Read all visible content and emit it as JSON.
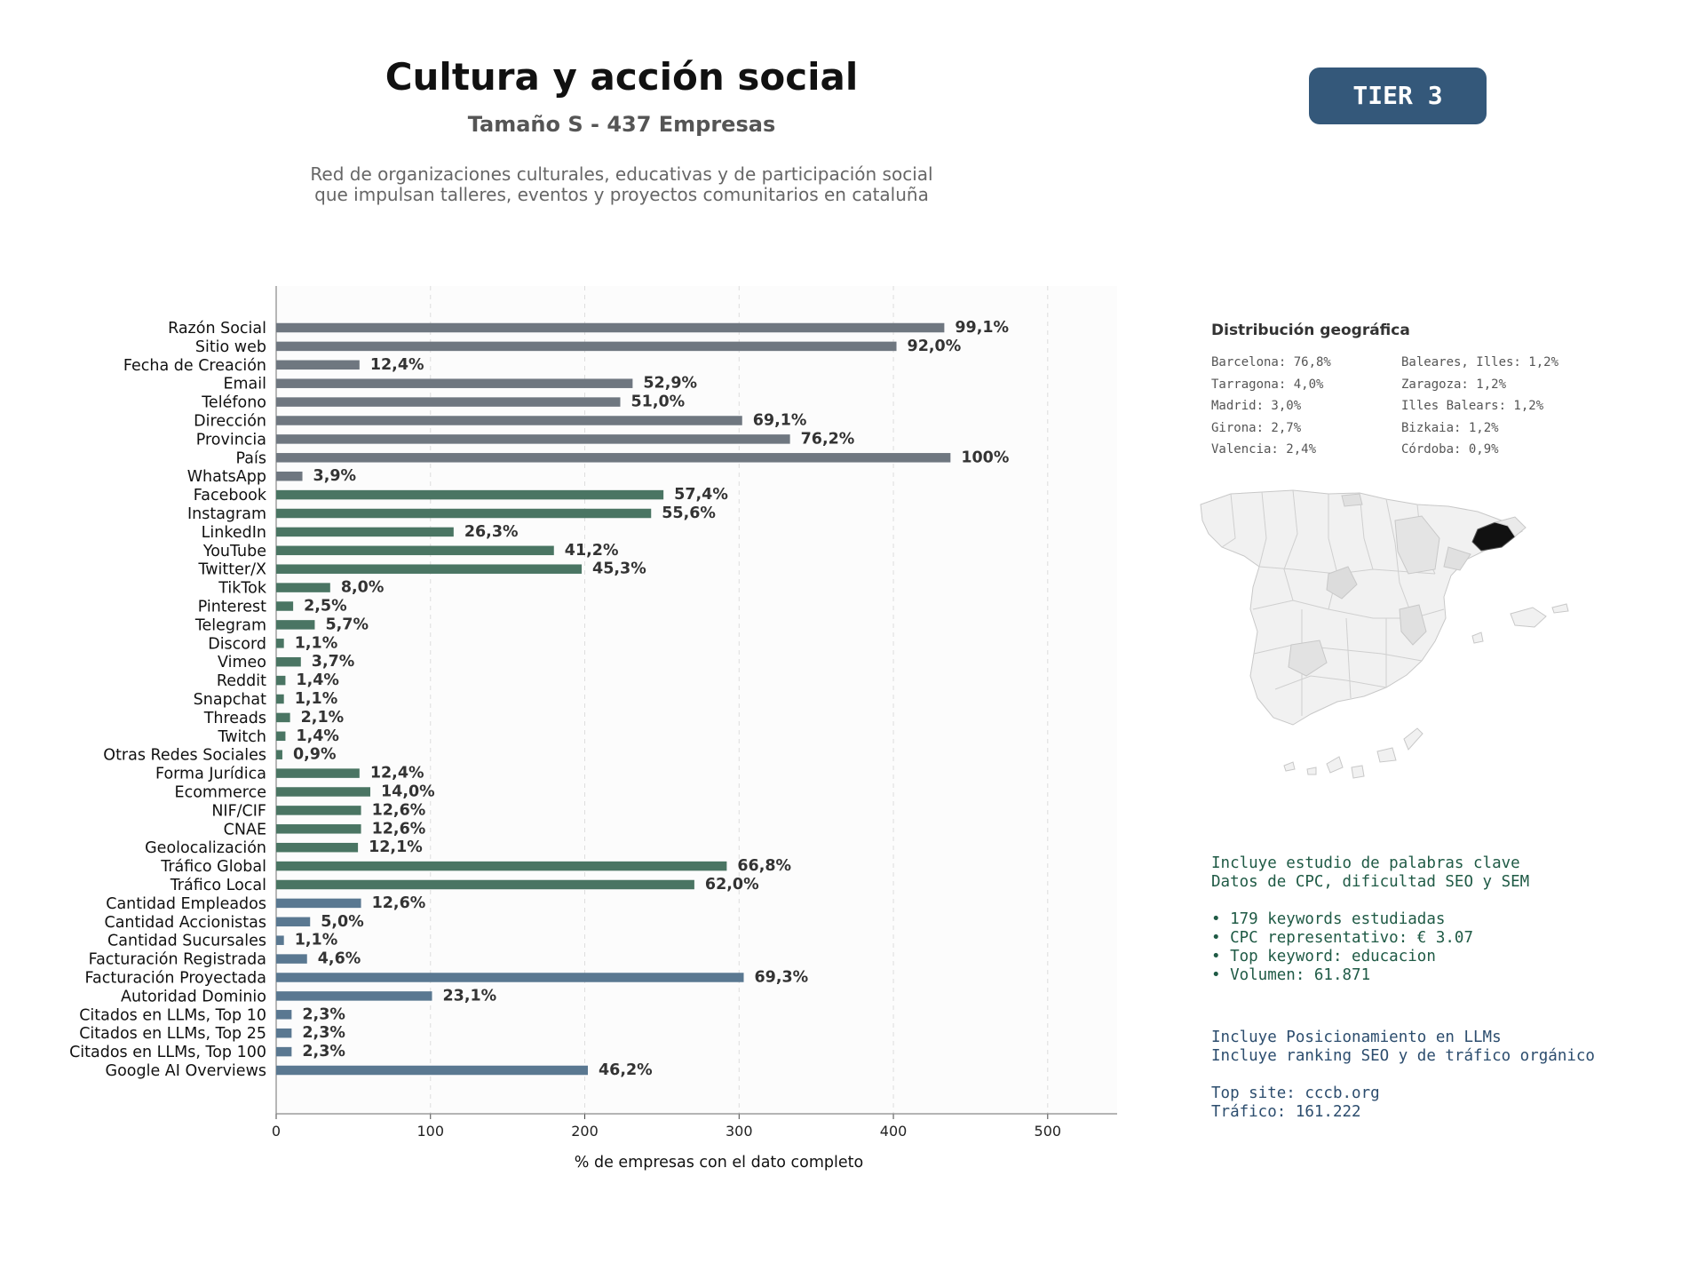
{
  "header": {
    "title": "Cultura y acción social",
    "subtitle": "Tamaño S - 437 Empresas",
    "description_lines": [
      "Red de organizaciones culturales, educativas y de participación social",
      "que impulsan talleres, eventos y proyectos comunitarios en cataluña"
    ],
    "tier_label": "TIER 3"
  },
  "chart_data": {
    "type": "bar",
    "orientation": "horizontal",
    "xlabel": "% de empresas con el dato completo",
    "ylabel": "",
    "xlim": [
      0,
      545
    ],
    "xticks": [
      0,
      100,
      200,
      300,
      400,
      500
    ],
    "grid": "vertical dashed",
    "categories": [
      "Razón Social",
      "Sitio web",
      "Fecha de Creación",
      "Email",
      "Teléfono",
      "Dirección",
      "Provincia",
      "País",
      "WhatsApp",
      "Facebook",
      "Instagram",
      "LinkedIn",
      "YouTube",
      "Twitter/X",
      "TikTok",
      "Pinterest",
      "Telegram",
      "Discord",
      "Vimeo",
      "Reddit",
      "Snapchat",
      "Threads",
      "Twitch",
      "Otras Redes Sociales",
      "Forma Jurídica",
      "Ecommerce",
      "NIF/CIF",
      "CNAE",
      "Geolocalización",
      "Tráfico Global",
      "Tráfico Local",
      "Cantidad Empleados",
      "Cantidad Accionistas",
      "Cantidad Sucursales",
      "Facturación Registrada",
      "Facturación Proyectada",
      "Autoridad Dominio",
      "Citados en LLMs, Top 10",
      "Citados en LLMs, Top 25",
      "Citados en LLMs, Top 100",
      "Google AI Overviews"
    ],
    "values": [
      433,
      402,
      54,
      231,
      223,
      302,
      333,
      437,
      17,
      251,
      243,
      115,
      180,
      198,
      35,
      11,
      25,
      5,
      16,
      6,
      5,
      9,
      6,
      4,
      54,
      61,
      55,
      55,
      53,
      292,
      271,
      55,
      22,
      5,
      20,
      303,
      101,
      10,
      10,
      10,
      202
    ],
    "value_labels": [
      "99,1%",
      "92,0%",
      "12,4%",
      "52,9%",
      "51,0%",
      "69,1%",
      "76,2%",
      "100%",
      "3,9%",
      "57,4%",
      "55,6%",
      "26,3%",
      "41,2%",
      "45,3%",
      "8,0%",
      "2,5%",
      "5,7%",
      "1,1%",
      "3,7%",
      "1,4%",
      "1,1%",
      "2,1%",
      "1,4%",
      "0,9%",
      "12,4%",
      "14,0%",
      "12,6%",
      "12,6%",
      "12,1%",
      "66,8%",
      "62,0%",
      "12,6%",
      "5,0%",
      "1,1%",
      "4,6%",
      "69,3%",
      "23,1%",
      "2,3%",
      "2,3%",
      "2,3%",
      "46,2%"
    ],
    "bar_colors": [
      "#6f7780",
      "#6f7780",
      "#6f7780",
      "#6f7780",
      "#6f7780",
      "#6f7780",
      "#6f7780",
      "#6f7780",
      "#6f7780",
      "#4a7563",
      "#4a7563",
      "#4a7563",
      "#4a7563",
      "#4a7563",
      "#4a7563",
      "#4a7563",
      "#4a7563",
      "#4a7563",
      "#4a7563",
      "#4a7563",
      "#4a7563",
      "#4a7563",
      "#4a7563",
      "#4a7563",
      "#4a7563",
      "#4a7563",
      "#4a7563",
      "#4a7563",
      "#4a7563",
      "#4a7563",
      "#4a7563",
      "#5a7891",
      "#5a7891",
      "#5a7891",
      "#5a7891",
      "#5a7891",
      "#5a7891",
      "#5a7891",
      "#5a7891",
      "#5a7891",
      "#5a7891"
    ]
  },
  "geo": {
    "title": "Distribución geográfica",
    "items": [
      "Barcelona: 76,8%",
      "Baleares, Illes: 1,2%",
      "Tarragona: 4,0%",
      "Zaragoza: 1,2%",
      "Madrid: 3,0%",
      "Illes Balears: 1,2%",
      "Girona: 2,7%",
      "Bizkaia: 1,2%",
      "Valencia: 2,4%",
      "Córdoba: 0,9%"
    ],
    "map_colors": {
      "base": "#f1f1f1",
      "border": "#c8c8c8",
      "light": "#e4e4e4",
      "highlight": "#111111"
    }
  },
  "keywords_info": {
    "lines": [
      "Incluye estudio de palabras clave",
      "Datos de CPC, dificultad SEO y SEM"
    ],
    "bullets": [
      "• 179 keywords estudiadas",
      "• CPC representativo: € 3.07",
      "• Top keyword: educacion",
      "• Volumen: 61.871"
    ]
  },
  "llm_info": {
    "lines": [
      "Incluye Posicionamiento en LLMs",
      "Incluye ranking SEO y de tráfico orgánico"
    ],
    "details": [
      "Top site: cccb.org",
      "Tráfico: 161.222"
    ]
  }
}
